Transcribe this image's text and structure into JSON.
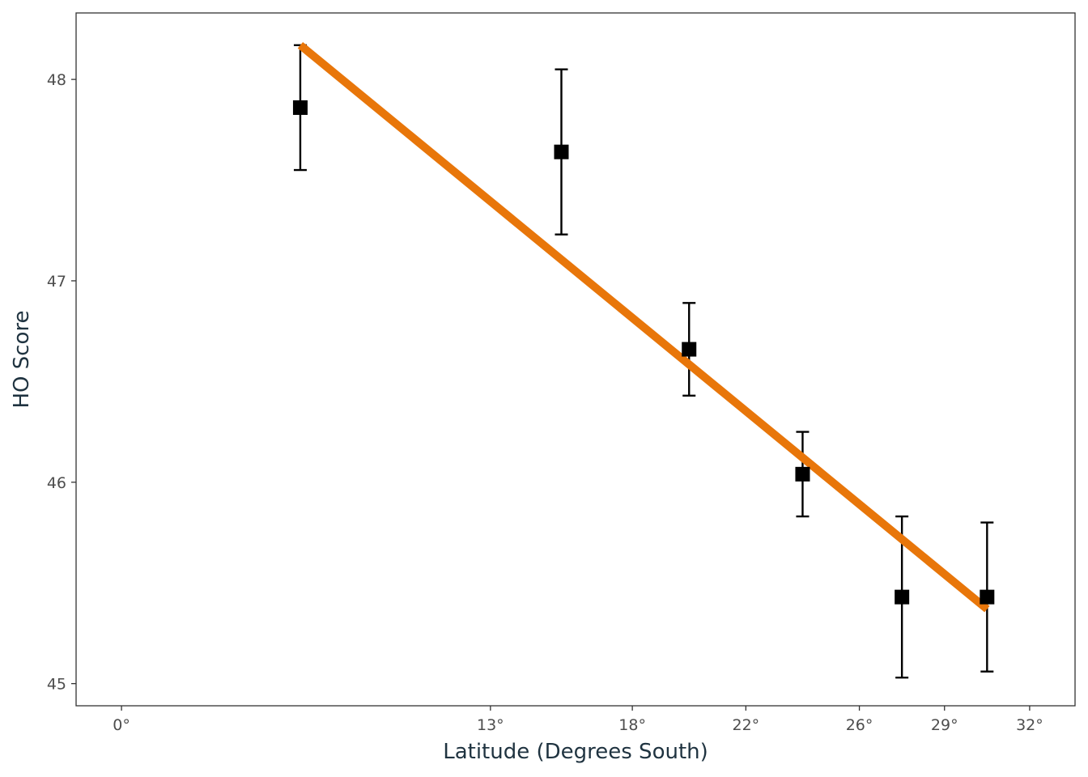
{
  "chart_data": {
    "type": "scatter",
    "title": "",
    "xlabel": "Latitude (Degrees South)",
    "ylabel": "HO Score",
    "xlim": [
      -1.6,
      33.6
    ],
    "ylim": [
      44.89,
      48.33
    ],
    "grid": false,
    "x_ticks": [
      {
        "value": 0,
        "label": "0°"
      },
      {
        "value": 13,
        "label": "13°"
      },
      {
        "value": 18,
        "label": "18°"
      },
      {
        "value": 22,
        "label": "22°"
      },
      {
        "value": 26,
        "label": "26°"
      },
      {
        "value": 29,
        "label": "29°"
      },
      {
        "value": 32,
        "label": "32°"
      }
    ],
    "y_ticks": [
      {
        "value": 45,
        "label": "45"
      },
      {
        "value": 46,
        "label": "46"
      },
      {
        "value": 47,
        "label": "47"
      },
      {
        "value": 48,
        "label": "48"
      }
    ],
    "points": [
      {
        "x": 6.3,
        "y": 47.86,
        "lower": 47.55,
        "upper": 48.17
      },
      {
        "x": 15.5,
        "y": 47.64,
        "lower": 47.23,
        "upper": 48.05
      },
      {
        "x": 20.0,
        "y": 46.66,
        "lower": 46.43,
        "upper": 46.89
      },
      {
        "x": 24.0,
        "y": 46.04,
        "lower": 45.83,
        "upper": 46.25
      },
      {
        "x": 27.5,
        "y": 45.43,
        "lower": 45.03,
        "upper": 45.83
      },
      {
        "x": 30.5,
        "y": 45.43,
        "lower": 45.06,
        "upper": 45.8
      }
    ],
    "fit_line": {
      "x": [
        6.3,
        30.5
      ],
      "y": [
        48.17,
        45.37
      ]
    },
    "colors": {
      "points": "#000000",
      "error_bars": "#000000",
      "fit_line": "#e8760a",
      "axis": "#333333",
      "tick_text": "#4d4d4d",
      "title_text": "#1f3340"
    }
  }
}
